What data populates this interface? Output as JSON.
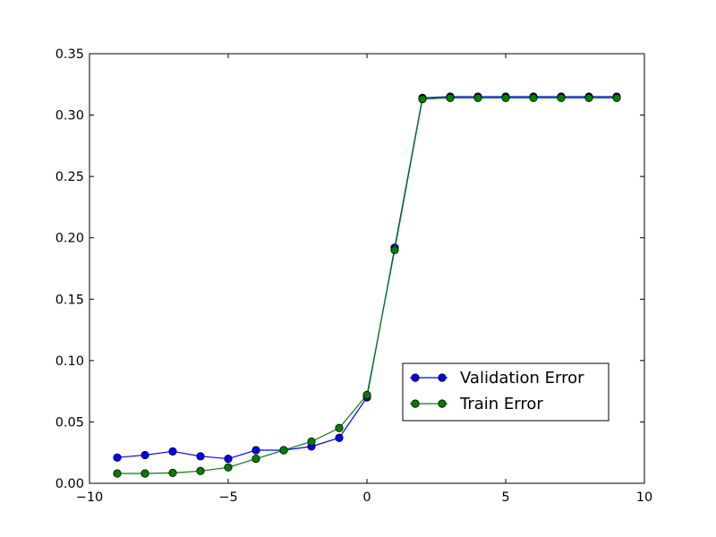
{
  "chart_data": {
    "type": "line",
    "title": "",
    "xlabel": "",
    "ylabel": "",
    "xlim": [
      -10,
      10
    ],
    "ylim": [
      0.0,
      0.35
    ],
    "xticks": [
      -10,
      -5,
      0,
      5,
      10
    ],
    "xtick_labels": [
      "−10",
      "−5",
      "0",
      "5",
      "10"
    ],
    "yticks": [
      0.0,
      0.05,
      0.1,
      0.15,
      0.2,
      0.25,
      0.3,
      0.35
    ],
    "ytick_labels": [
      "0.00",
      "0.05",
      "0.10",
      "0.15",
      "0.20",
      "0.25",
      "0.30",
      "0.35"
    ],
    "grid": false,
    "legend_position": "lower-right",
    "x": [
      -9,
      -8,
      -7,
      -6,
      -5,
      -4,
      -3,
      -2,
      -1,
      0,
      1,
      2,
      3,
      4,
      5,
      6,
      7,
      8,
      9
    ],
    "series": [
      {
        "name": "Validation Error",
        "color": "#0000ff",
        "marker_face": "#0000ff",
        "values": [
          0.021,
          0.023,
          0.026,
          0.022,
          0.02,
          0.027,
          0.027,
          0.03,
          0.037,
          0.07,
          0.192,
          0.314,
          0.315,
          0.315,
          0.315,
          0.315,
          0.315,
          0.315,
          0.315
        ]
      },
      {
        "name": "Train Error",
        "color": "#008000",
        "marker_face": "#008000",
        "values": [
          0.008,
          0.008,
          0.0085,
          0.01,
          0.013,
          0.02,
          0.027,
          0.034,
          0.045,
          0.072,
          0.19,
          0.313,
          0.314,
          0.314,
          0.314,
          0.314,
          0.314,
          0.314,
          0.314
        ]
      }
    ]
  }
}
